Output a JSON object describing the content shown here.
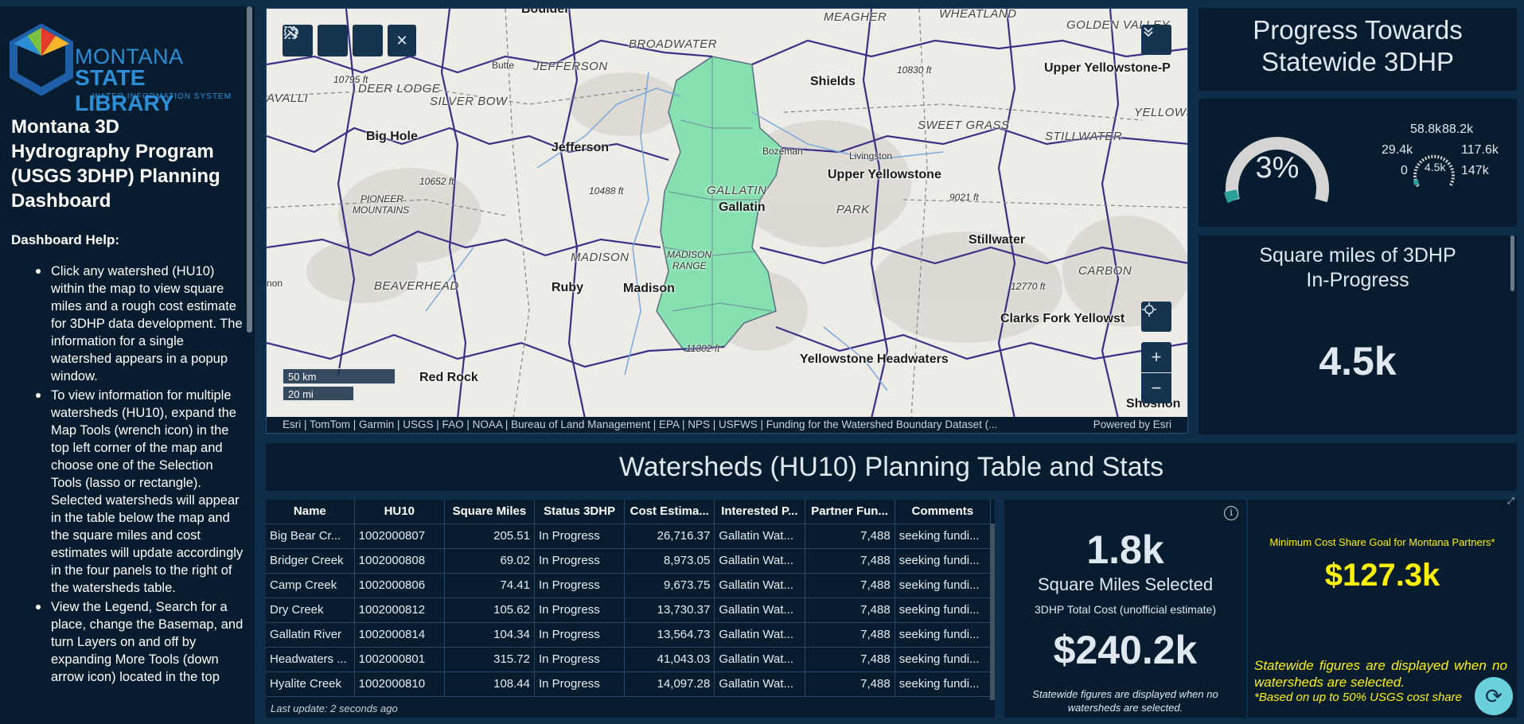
{
  "sidebar": {
    "logo_line1": "MONTANA",
    "logo_line2": "STATE LIBRARY",
    "logo_line3": "WATER INFORMATION SYSTEM",
    "title": "Montana 3D Hydrography Program (USGS 3DHP) Planning Dashboard",
    "help_title": "Dashboard Help:",
    "help_items": [
      "Click any watershed (HU10) within the map to view square miles and a rough cost estimate for 3DHP data development.  The information for a single watershed appears in a popup window.",
      "To view information for multiple watersheds (HU10), expand the Map Tools (wrench icon) in the top left corner of the map and choose one of the Selection Tools (lasso or rectangle).  Selected watersheds will appear in the table below the map and the square miles and cost estimates will update accordingly in the four panels to the right of the watersheds table.",
      "View the Legend, Search for a place, change the Basemap, and turn Layers on and off by expanding More Tools (down arrow icon) located in the top"
    ]
  },
  "map": {
    "tools": {
      "wrench": "wrench-icon",
      "lasso": "lasso-icon",
      "rect": "rectangle-select-icon",
      "close": "close-icon"
    },
    "scale_km": "50 km",
    "scale_mi": "20 mi",
    "attribution": "Esri | TomTom | Garmin | USGS | FAO | NOAA | Bureau of Land Management | EPA | NPS | USFWS | Funding for the Watershed Boundary Dataset (...",
    "powered": "Powered by Esri",
    "labels": {
      "boulder": "Boulder",
      "meagher": "MEAGHER",
      "wheatland": "WHEATLAND",
      "golden_valley": "GOLDEN VALLEY",
      "deer_lodge": "DEER LODGE",
      "butte": "Butte",
      "jefferson_caps": "JEFFERSON",
      "broadwater": "BROADWATER",
      "shields": "Shields",
      "upper_yellowstone_p": "Upper Yellowstone-P",
      "yellowst": "YELLOWST",
      "silver_bow": "SILVER BOW",
      "avalli": "AVALLI",
      "big_hole": "Big Hole",
      "jefferson": "Jefferson",
      "bozeman": "Bozeman",
      "livingston": "Livingston",
      "sweet_grass": "SWEET GRASS",
      "stillwater_caps": "STILLWATER",
      "gallatin_caps": "GALLATIN",
      "gallatin": "Gallatin",
      "upper_yellowstone": "Upper Yellowstone",
      "pioneer": "PIONEER",
      "mountains": "MOUNTAINS",
      "park": "PARK",
      "stillwater": "Stillwater",
      "madison_caps": "MADISON",
      "madison_range1": "MADISON",
      "madison_range2": "RANGE",
      "beaverhead": "BEAVERHEAD",
      "ruby": "Ruby",
      "madison": "Madison",
      "carbon": "CARBON",
      "clarks_fork": "Clarks Fork Yellowst",
      "yellowstone_hw": "Yellowstone Headwaters",
      "red_rock": "Red Rock",
      "shoshon": "Shoshon",
      "e10795": "10795 ft",
      "e10652": "10652 ft",
      "e10488": "10488 ft",
      "e10830": "10830 ft",
      "e9021": "9021 ft",
      "e12770": "12770 ft",
      "e11302": "11302 ft",
      "non": "non"
    }
  },
  "progress": {
    "title_line1": "Progress Towards",
    "title_line2": "Statewide 3DHP",
    "percent": "3%",
    "percent_value": 0.03,
    "small_gauge": {
      "t1": "58.8k",
      "t2": "88.2k",
      "l1": "29.4k",
      "r1": "117.6k",
      "min": "0",
      "cur": "4.5k",
      "max": "147k"
    }
  },
  "in_progress": {
    "label_line1": "Square miles of 3DHP",
    "label_line2": "In-Progress",
    "value": "4.5k"
  },
  "banner": "Watersheds (HU10) Planning Table and Stats",
  "table": {
    "headers": [
      "Name",
      "HU10",
      "Square Miles",
      "Status 3DHP",
      "Cost Estima...",
      "Interested P...",
      "Partner Fun...",
      "Comments"
    ],
    "rows": [
      [
        "Big Bear Cr...",
        "1002000807",
        "205.51",
        "In Progress",
        "26,716.37",
        "Gallatin Wat...",
        "7,488",
        "seeking fundi..."
      ],
      [
        "Bridger Creek",
        "1002000808",
        "69.02",
        "In Progress",
        "8,973.05",
        "Gallatin Wat...",
        "7,488",
        "seeking fundi..."
      ],
      [
        "Camp Creek",
        "1002000806",
        "74.41",
        "In Progress",
        "9,673.75",
        "Gallatin Wat...",
        "7,488",
        "seeking fundi..."
      ],
      [
        "Dry Creek",
        "1002000812",
        "105.62",
        "In Progress",
        "13,730.37",
        "Gallatin Wat...",
        "7,488",
        "seeking fundi..."
      ],
      [
        "Gallatin River",
        "1002000814",
        "104.34",
        "In Progress",
        "13,564.73",
        "Gallatin Wat...",
        "7,488",
        "seeking fundi..."
      ],
      [
        "Headwaters ...",
        "1002000801",
        "315.72",
        "In Progress",
        "41,043.03",
        "Gallatin Wat...",
        "7,488",
        "seeking fundi..."
      ],
      [
        "Hyalite Creek",
        "1002000810",
        "108.44",
        "In Progress",
        "14,097.28",
        "Gallatin Wat...",
        "7,488",
        "seeking fundi..."
      ]
    ],
    "last_update": "Last update: 2 seconds ago"
  },
  "selected": {
    "sq_value": "1.8k",
    "sq_label": "Square Miles Selected",
    "cost_label": "3DHP Total Cost (unofficial estimate)",
    "cost_value": "$240.2k",
    "note": "Statewide figures are displayed when no watersheds are selected."
  },
  "goal": {
    "label": "Minimum Cost Share Goal for Montana Partners*",
    "value": "$127.3k",
    "note": "Statewide figures are displayed when no watersheds are selected.",
    "note2": "*Based on up to 50% USGS cost share"
  },
  "colors": {
    "panel": "#071c2f",
    "background": "#0f2c48",
    "selected_watershed": "#86e0b0",
    "goal_text": "#fff200",
    "gauge_fill": "#2aa198"
  }
}
